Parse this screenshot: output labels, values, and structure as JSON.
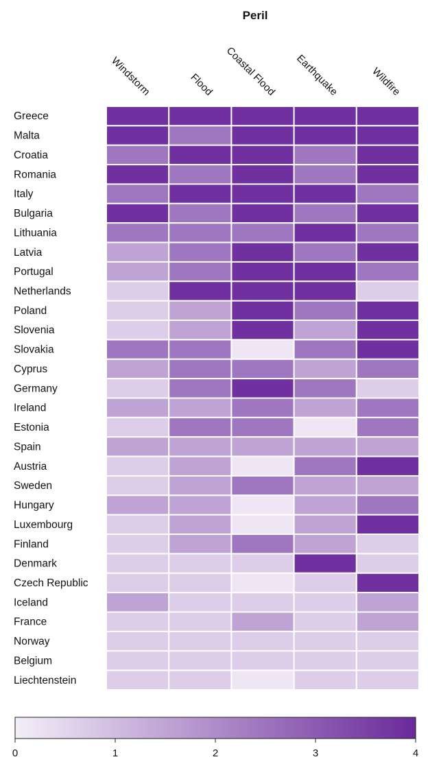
{
  "chart_data": {
    "type": "heatmap",
    "title": "Peril",
    "columns": [
      "Windstorm",
      "Flood",
      "Coastal Flood",
      "Earthquake",
      "Wildfire"
    ],
    "rows": [
      "Greece",
      "Malta",
      "Croatia",
      "Romania",
      "Italy",
      "Bulgaria",
      "Lithuania",
      "Latvia",
      "Portugal",
      "Netherlands",
      "Poland",
      "Slovenia",
      "Slovakia",
      "Cyprus",
      "Germany",
      "Ireland",
      "Estonia",
      "Spain",
      "Austria",
      "Sweden",
      "Hungary",
      "Luxembourg",
      "Finland",
      "Denmark",
      "Czech Republic",
      "Iceland",
      "France",
      "Norway",
      "Belgium",
      "Liechtenstein"
    ],
    "values": [
      [
        4,
        4,
        4,
        4,
        4
      ],
      [
        4,
        3,
        4,
        4,
        4
      ],
      [
        3,
        4,
        4,
        3,
        4
      ],
      [
        4,
        3,
        4,
        3,
        4
      ],
      [
        3,
        4,
        4,
        4,
        3
      ],
      [
        4,
        3,
        4,
        3,
        4
      ],
      [
        3,
        3,
        3,
        4,
        3
      ],
      [
        2,
        3,
        4,
        3,
        4
      ],
      [
        2,
        3,
        4,
        4,
        3
      ],
      [
        1,
        4,
        4,
        4,
        1
      ],
      [
        1,
        2,
        4,
        3,
        4
      ],
      [
        1,
        2,
        4,
        2,
        4
      ],
      [
        3,
        3,
        0,
        3,
        4
      ],
      [
        2,
        3,
        3,
        2,
        3
      ],
      [
        1,
        3,
        4,
        3,
        1
      ],
      [
        2,
        2,
        3,
        2,
        3
      ],
      [
        1,
        3,
        3,
        0,
        3
      ],
      [
        2,
        2,
        2,
        2,
        2
      ],
      [
        1,
        2,
        0,
        3,
        4
      ],
      [
        1,
        2,
        3,
        2,
        2
      ],
      [
        2,
        2,
        0,
        2,
        3
      ],
      [
        1,
        2,
        0,
        2,
        4
      ],
      [
        1,
        2,
        3,
        2,
        1
      ],
      [
        1,
        1,
        1,
        4,
        1
      ],
      [
        1,
        1,
        0,
        1,
        4
      ],
      [
        2,
        1,
        1,
        1,
        2
      ],
      [
        1,
        1,
        2,
        1,
        2
      ],
      [
        1,
        1,
        1,
        1,
        1
      ],
      [
        1,
        1,
        1,
        1,
        1
      ],
      [
        1,
        1,
        0,
        1,
        1
      ]
    ],
    "colorbar": {
      "range": [
        0,
        4
      ],
      "ticks": [
        "0",
        "1",
        "2",
        "3",
        "4"
      ],
      "placement": "bottom"
    },
    "colors": [
      "#eee6f4",
      "#ddcde9",
      "#bea3d4",
      "#9e77c0",
      "#7030a0"
    ]
  }
}
